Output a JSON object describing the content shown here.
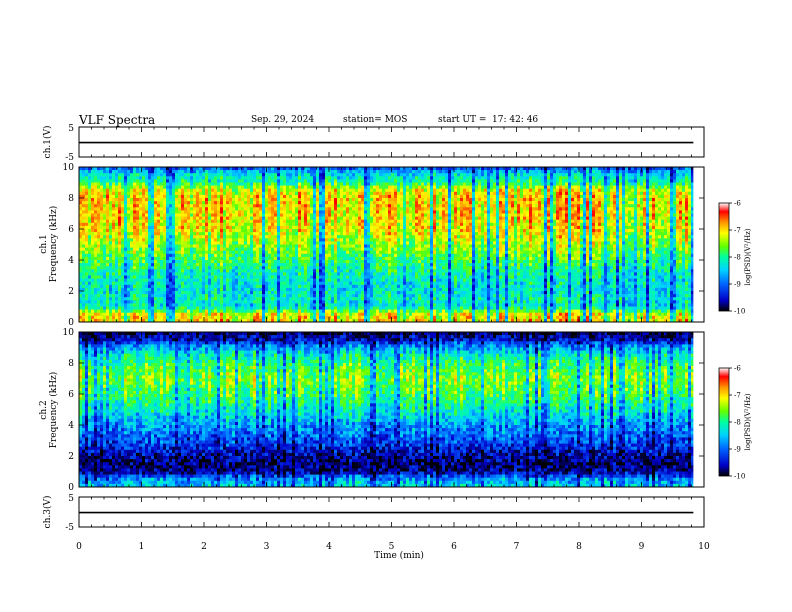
{
  "header": {
    "title": "VLF Spectra",
    "date": "Sep. 29, 2024",
    "station": "station= MOS",
    "start_label": "start  UT  =",
    "start_time": "17: 42: 46"
  },
  "chart_data": [
    {
      "type": "line",
      "panel": "ch1-waveform",
      "ylabel": "ch.1(V)",
      "ylim": [
        -5,
        5
      ],
      "yticks": [
        "5",
        "-5"
      ],
      "x": [
        0,
        9.83
      ],
      "values": [
        -0.2,
        -0.2
      ],
      "color": "#000000"
    },
    {
      "type": "heatmap",
      "panel": "ch1-spectrogram",
      "ylabel": "ch.1\nFrequency (kHz)",
      "ylabel_lines": [
        "ch.1",
        "Frequency (kHz)"
      ],
      "xlim": [
        0,
        10
      ],
      "ylim": [
        0,
        10
      ],
      "yticks": [
        "0",
        "2",
        "4",
        "6",
        "8",
        "10"
      ],
      "data_end_min": 9.83,
      "colorbar": {
        "label": "log(PSD)(V²/Hz)",
        "ticks": [
          "-6",
          "-7",
          "-8",
          "-9",
          "-10"
        ],
        "range": [
          -10,
          -6
        ]
      },
      "profile_khz": [
        0,
        0.5,
        1,
        1.5,
        2,
        3,
        4,
        5,
        6,
        7,
        8,
        8.5,
        9,
        9.5,
        10
      ],
      "profile_level": [
        0.85,
        0.8,
        0.45,
        0.5,
        0.45,
        0.5,
        0.6,
        0.72,
        0.82,
        0.85,
        0.86,
        0.8,
        0.55,
        0.45,
        0.25
      ]
    },
    {
      "type": "heatmap",
      "panel": "ch2-spectrogram",
      "ylabel": "ch.2\nFrequency (kHz)",
      "ylabel_lines": [
        "ch.2",
        "Frequency (kHz)"
      ],
      "xlim": [
        0,
        10
      ],
      "ylim": [
        0,
        10
      ],
      "yticks": [
        "0",
        "2",
        "4",
        "6",
        "8",
        "10"
      ],
      "data_end_min": 9.83,
      "colorbar": {
        "label": "log(PSD)(V²/Hz)",
        "ticks": [
          "-6",
          "-7",
          "-8",
          "-9",
          "-10"
        ],
        "range": [
          -10,
          -6
        ]
      },
      "profile_khz": [
        0,
        0.5,
        1,
        1.5,
        2,
        3,
        4,
        5,
        6,
        7,
        8,
        8.5,
        9,
        9.5,
        10
      ],
      "profile_level": [
        0.45,
        0.35,
        0.1,
        0.08,
        0.12,
        0.25,
        0.35,
        0.5,
        0.62,
        0.7,
        0.6,
        0.5,
        0.35,
        0.15,
        0.05
      ]
    },
    {
      "type": "line",
      "panel": "ch3-waveform",
      "ylabel": "ch.3(V)",
      "ylim": [
        -5,
        5
      ],
      "yticks": [
        "5",
        "-5"
      ],
      "x": [
        0,
        9.83
      ],
      "values": [
        -0.2,
        -0.2
      ],
      "color": "#000000"
    }
  ],
  "xaxis": {
    "label": "Time  (min)",
    "ticks": [
      "0",
      "1",
      "2",
      "3",
      "4",
      "5",
      "6",
      "7",
      "8",
      "9",
      "10"
    ],
    "range": [
      0,
      10
    ]
  },
  "colormap": [
    "#000000",
    "#0000c8",
    "#0064ff",
    "#00d2ff",
    "#00ffa0",
    "#64ff00",
    "#ffff00",
    "#ff9600",
    "#ff0000",
    "#ffffff"
  ]
}
